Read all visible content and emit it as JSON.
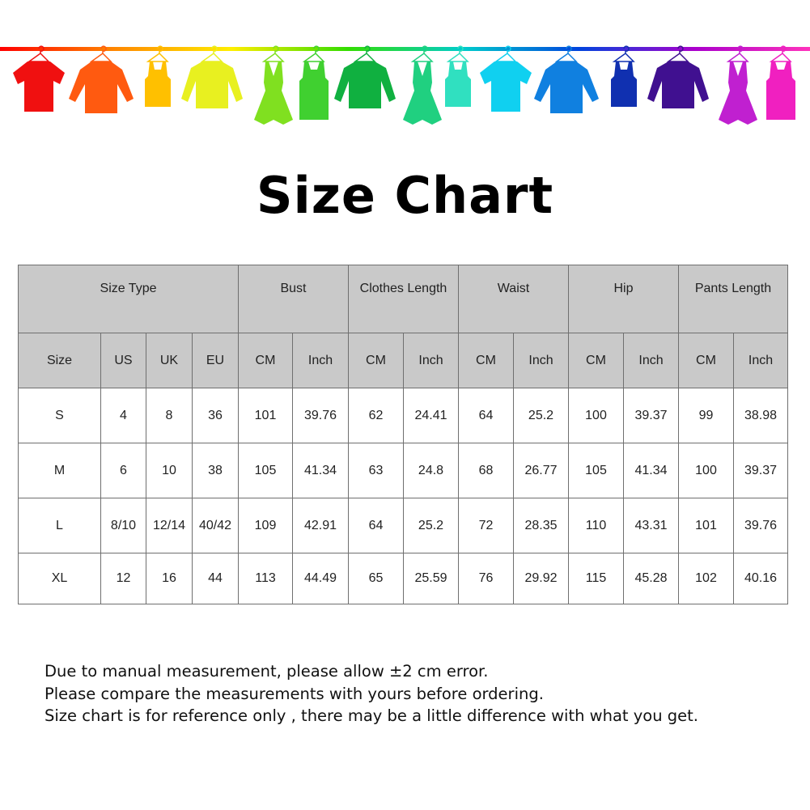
{
  "banner": {
    "rod_colors": [
      "#ff0000",
      "#ff8800",
      "#ffee00",
      "#33dd00",
      "#00cccc",
      "#0044dd",
      "#aa00cc",
      "#ff33bb"
    ],
    "garments": [
      {
        "icon": "tshirt-icon",
        "color": "#f01010"
      },
      {
        "icon": "shirt-icon",
        "color": "#ff5a10"
      },
      {
        "icon": "tank-top-icon",
        "color": "#ffc000"
      },
      {
        "icon": "sweater-icon",
        "color": "#e8f020"
      },
      {
        "icon": "dress-icon",
        "color": "#80e020"
      },
      {
        "icon": "belted-dress-icon",
        "color": "#40d030"
      },
      {
        "icon": "sweater-icon",
        "color": "#10b040"
      },
      {
        "icon": "dress-icon",
        "color": "#20d080"
      },
      {
        "icon": "tank-top-icon",
        "color": "#30e0c0"
      },
      {
        "icon": "tshirt-icon",
        "color": "#10d0f0"
      },
      {
        "icon": "shirt-icon",
        "color": "#1080e0"
      },
      {
        "icon": "tank-top-icon",
        "color": "#1030b0"
      },
      {
        "icon": "sweater-icon",
        "color": "#401090"
      },
      {
        "icon": "dress-icon",
        "color": "#c020d0"
      },
      {
        "icon": "belted-dress-icon",
        "color": "#f020c0"
      }
    ]
  },
  "title": "Size Chart",
  "table": {
    "group_headers": [
      "Size Type",
      "Bust",
      "Clothes Length",
      "Waist",
      "Hip",
      "Pants Length"
    ],
    "sub_headers": [
      "Size",
      "US",
      "UK",
      "EU",
      "CM",
      "Inch",
      "CM",
      "Inch",
      "CM",
      "Inch",
      "CM",
      "Inch",
      "CM",
      "Inch"
    ],
    "rows": [
      [
        "S",
        "4",
        "8",
        "36",
        "101",
        "39.76",
        "62",
        "24.41",
        "64",
        "25.2",
        "100",
        "39.37",
        "99",
        "38.98"
      ],
      [
        "M",
        "6",
        "10",
        "38",
        "105",
        "41.34",
        "63",
        "24.8",
        "68",
        "26.77",
        "105",
        "41.34",
        "100",
        "39.37"
      ],
      [
        "L",
        "8/10",
        "12/14",
        "40/42",
        "109",
        "42.91",
        "64",
        "25.2",
        "72",
        "28.35",
        "110",
        "43.31",
        "101",
        "39.76"
      ],
      [
        "XL",
        "12",
        "16",
        "44",
        "113",
        "44.49",
        "65",
        "25.59",
        "76",
        "29.92",
        "115",
        "45.28",
        "102",
        "40.16"
      ]
    ]
  },
  "notes": [
    "Due to manual measurement, please allow ±2 cm error.",
    "Please compare the measurements with yours before ordering.",
    "Size chart is for reference only , there may be a little difference with what you get."
  ]
}
